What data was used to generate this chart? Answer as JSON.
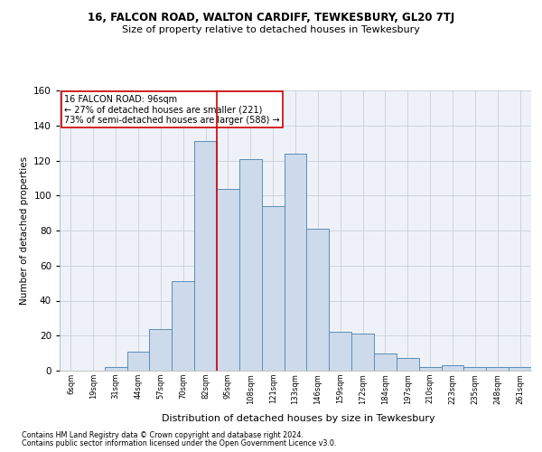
{
  "title1": "16, FALCON ROAD, WALTON CARDIFF, TEWKESBURY, GL20 7TJ",
  "title2": "Size of property relative to detached houses in Tewkesbury",
  "xlabel": "Distribution of detached houses by size in Tewkesbury",
  "ylabel": "Number of detached properties",
  "bin_labels": [
    "6sqm",
    "19sqm",
    "31sqm",
    "44sqm",
    "57sqm",
    "70sqm",
    "82sqm",
    "95sqm",
    "108sqm",
    "121sqm",
    "133sqm",
    "146sqm",
    "159sqm",
    "172sqm",
    "184sqm",
    "197sqm",
    "210sqm",
    "223sqm",
    "235sqm",
    "248sqm",
    "261sqm"
  ],
  "bar_heights": [
    0,
    0,
    2,
    11,
    24,
    51,
    131,
    104,
    121,
    94,
    124,
    81,
    22,
    21,
    10,
    7,
    2,
    3,
    2,
    2,
    2
  ],
  "bar_color": "#cddaeb",
  "bar_edge_color": "#5b8db8",
  "vline_x_idx": 7,
  "vline_label": "16 FALCON ROAD: 96sqm",
  "annotation_line1": "← 27% of detached houses are smaller (221)",
  "annotation_line2": "73% of semi-detached houses are larger (588) →",
  "vline_color": "#cc0000",
  "annotation_box_edge": "#cc0000",
  "ylim": [
    0,
    160
  ],
  "yticks": [
    0,
    20,
    40,
    60,
    80,
    100,
    120,
    140,
    160
  ],
  "footer1": "Contains HM Land Registry data © Crown copyright and database right 2024.",
  "footer2": "Contains public sector information licensed under the Open Government Licence v3.0.",
  "bg_color": "#eef2f8"
}
